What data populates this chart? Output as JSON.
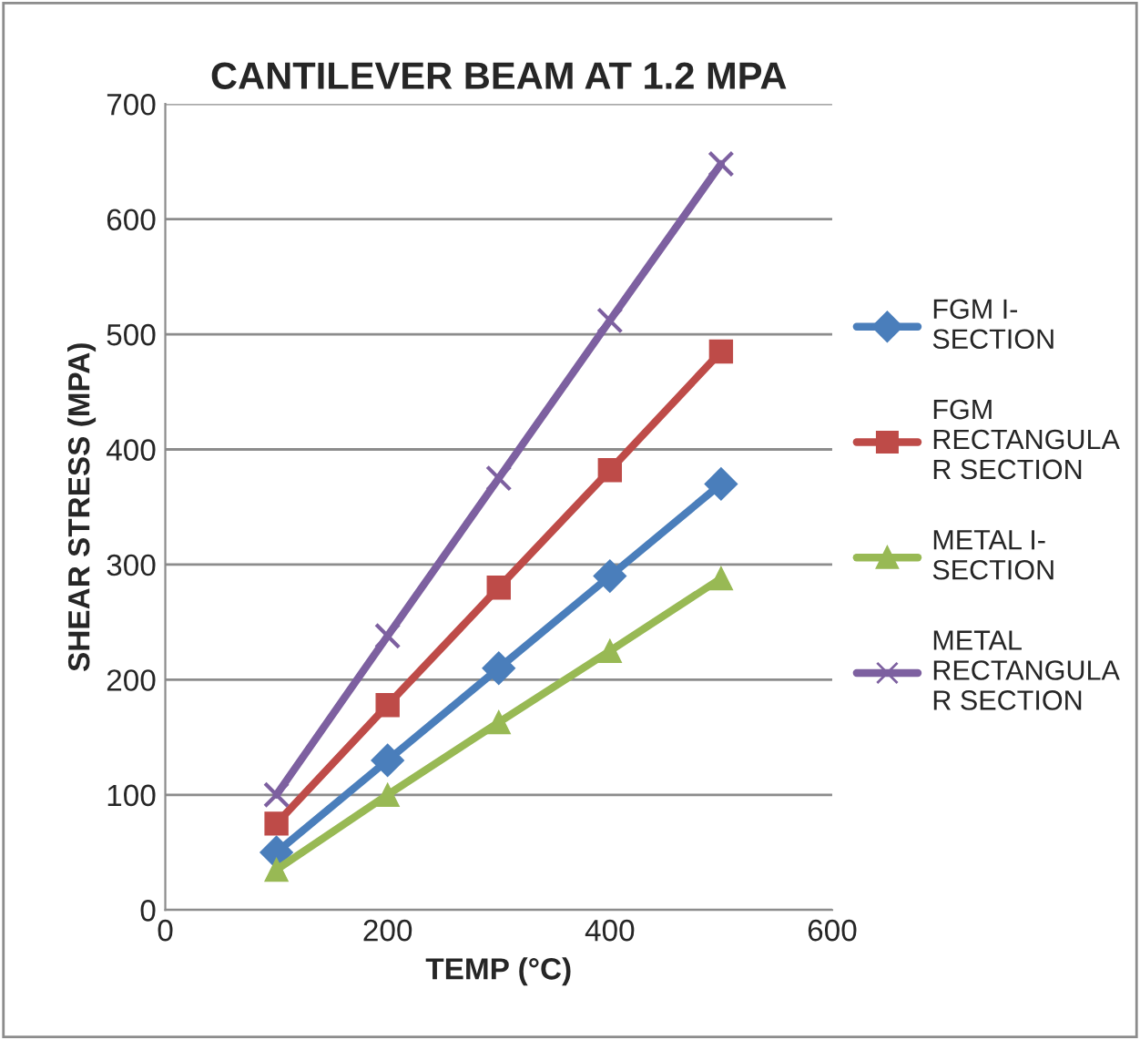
{
  "chart_data": {
    "type": "line",
    "title": "CANTILEVER BEAM AT 1.2 MPA",
    "xlabel": "TEMP (°C)",
    "ylabel": "SHEAR STRESS (MPA)",
    "x": [
      100,
      200,
      300,
      400,
      500
    ],
    "series": [
      {
        "name": "FGM I-\nSECTION",
        "color": "#4a7ebb",
        "marker": "diamond",
        "values": [
          50,
          130,
          210,
          290,
          370
        ]
      },
      {
        "name": "FGM\nRECTANGULA\nR SECTION",
        "color": "#be4b48",
        "marker": "square",
        "values": [
          75,
          178,
          280,
          382,
          485
        ]
      },
      {
        "name": "METAL I-\nSECTION",
        "color": "#98b954",
        "marker": "triangle",
        "values": [
          35,
          100,
          163,
          225,
          288
        ]
      },
      {
        "name": "METAL\nRECTANGULA\nR SECTION",
        "color": "#7d60a0",
        "marker": "cross",
        "values": [
          100,
          238,
          375,
          512,
          648
        ]
      }
    ],
    "xlim": [
      0,
      600
    ],
    "xticks": [
      0,
      200,
      400,
      600
    ],
    "ylim": [
      0,
      700
    ],
    "yticks": [
      0,
      100,
      200,
      300,
      400,
      500,
      600,
      700
    ],
    "grid": "y",
    "legend": "right"
  }
}
